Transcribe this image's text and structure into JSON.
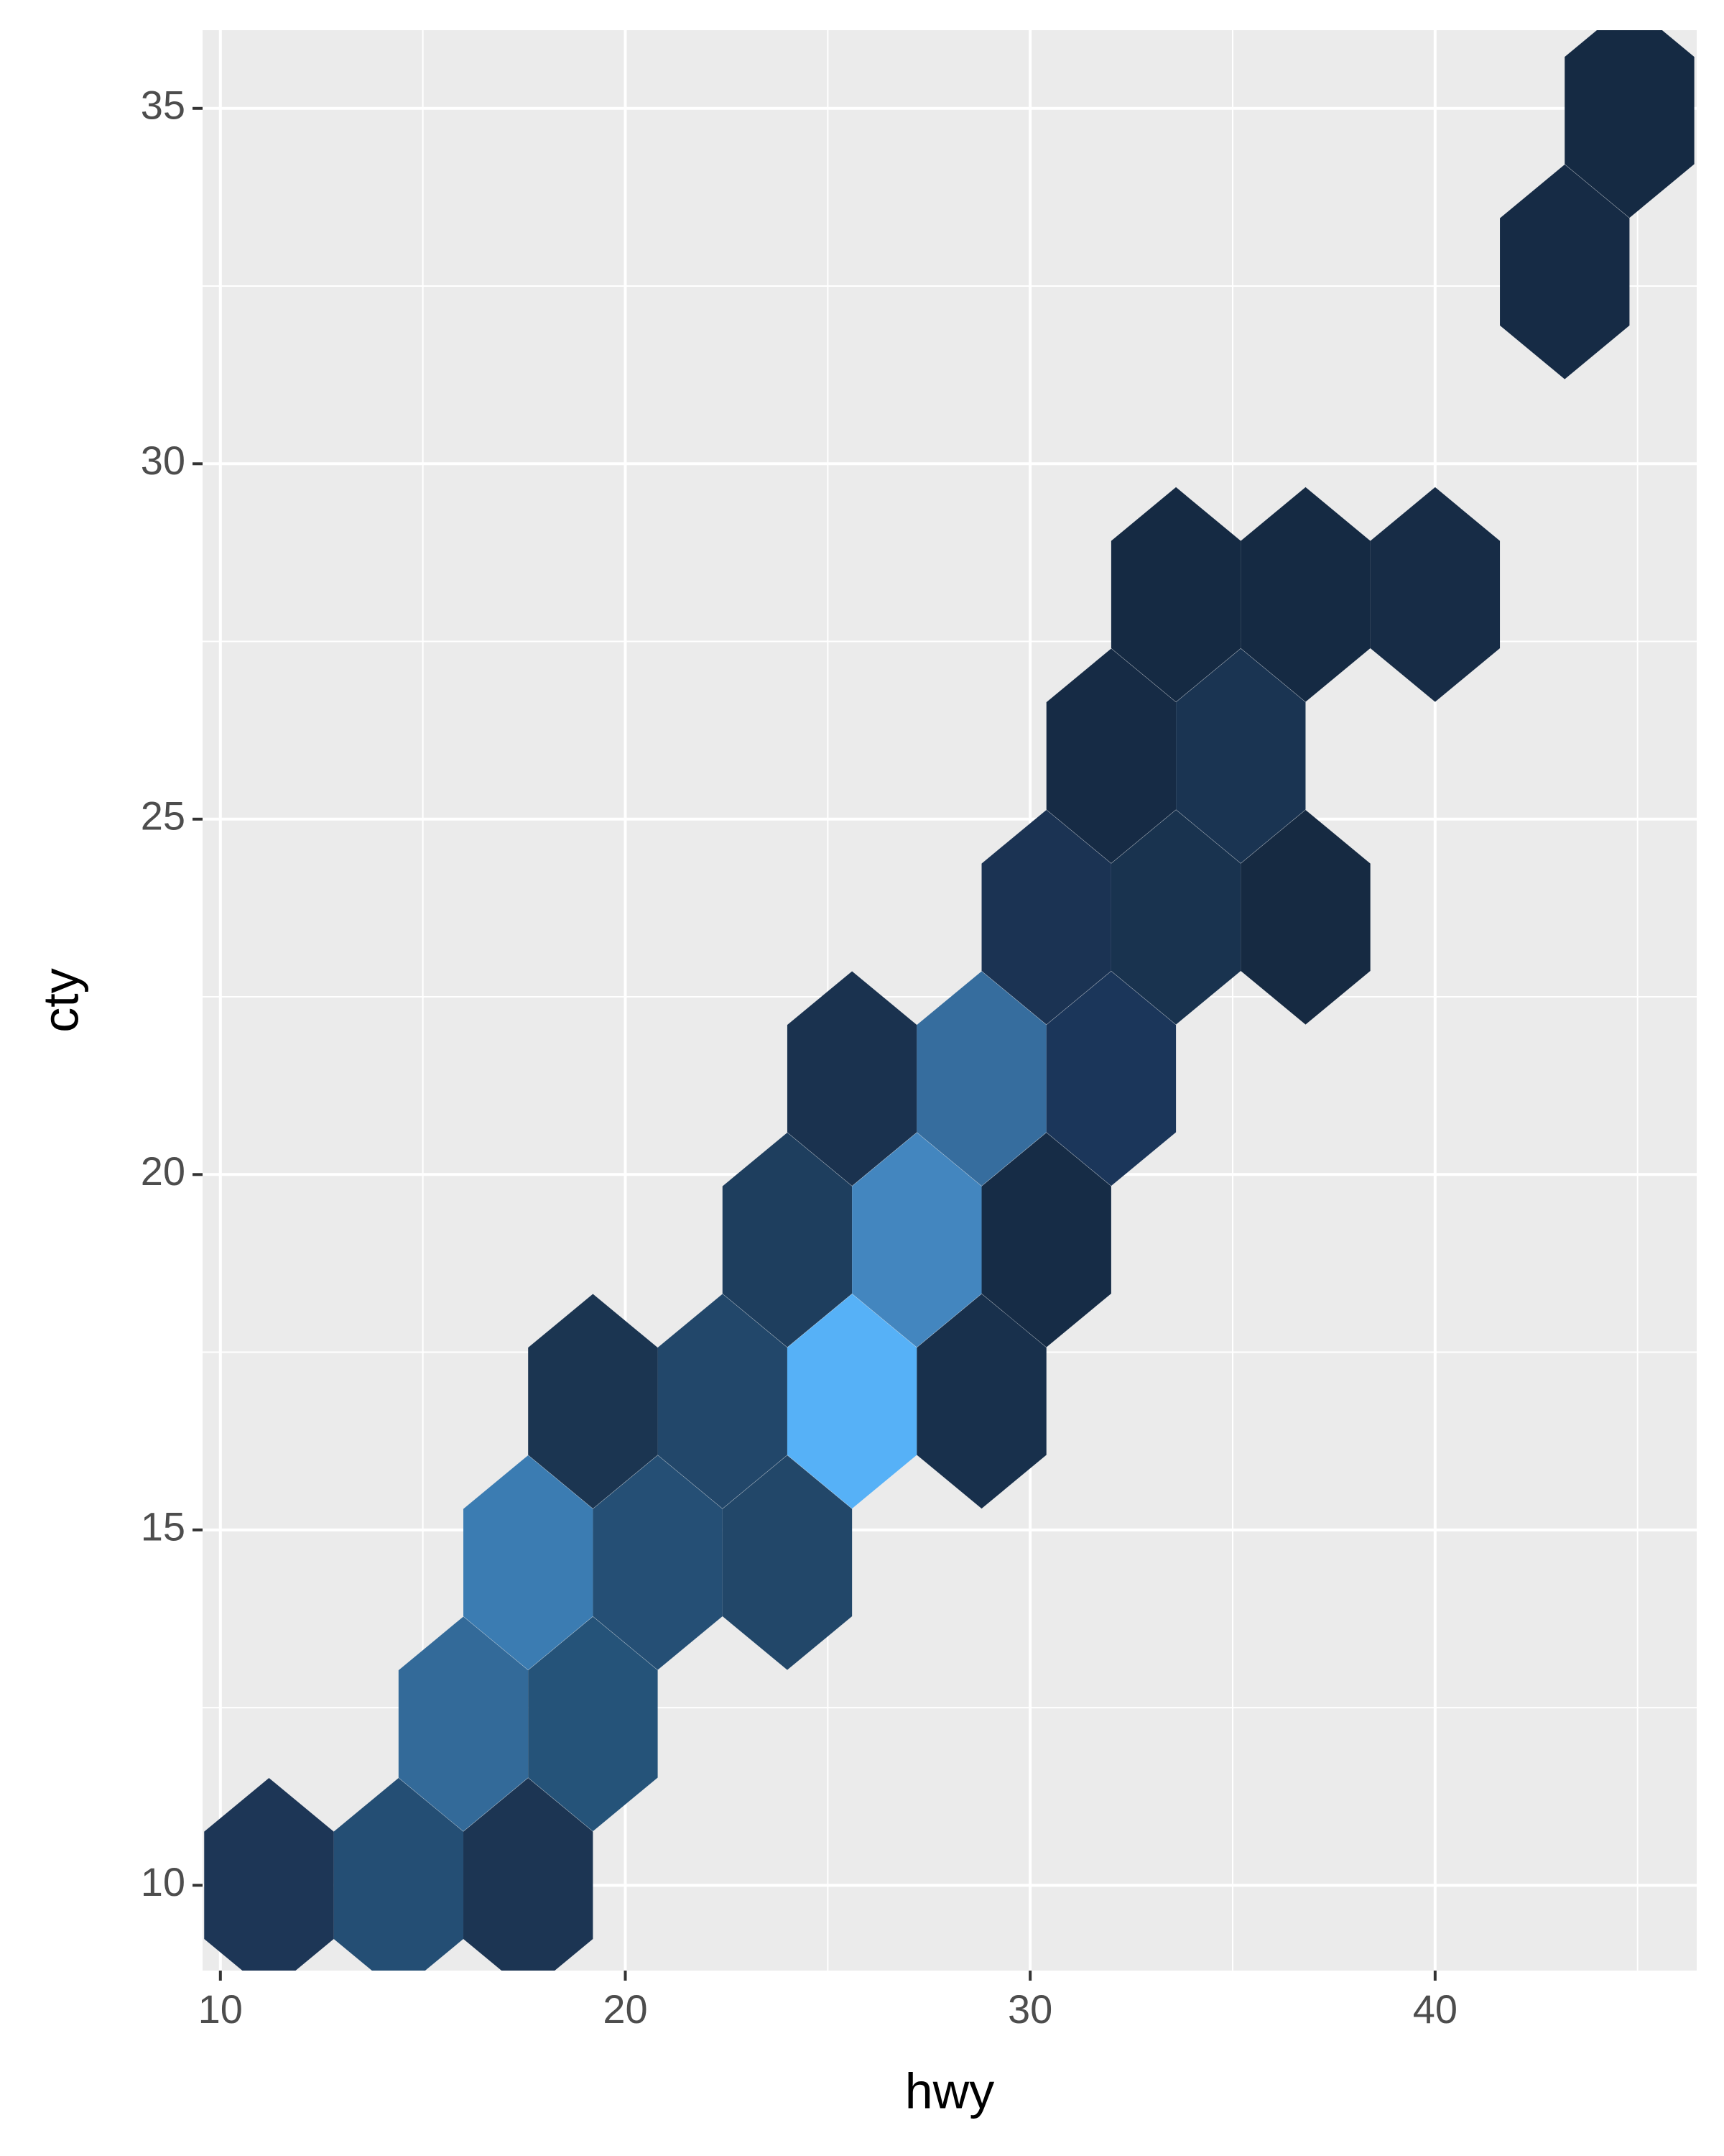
{
  "chart_data": {
    "type": "hexbin",
    "x_label": "hwy",
    "y_label": "cty",
    "x": [
      11.2,
      14.4,
      17.6,
      16.0,
      19.2,
      17.6,
      20.8,
      24.0,
      19.2,
      22.4,
      25.6,
      28.8,
      24.0,
      27.2,
      30.4,
      25.6,
      28.8,
      32.0,
      30.4,
      33.6,
      36.8,
      32.0,
      35.2,
      33.6,
      36.8,
      40.0,
      43.2,
      44.8
    ],
    "y": [
      10.0,
      10.0,
      10.0,
      12.27,
      12.27,
      14.54,
      14.54,
      14.54,
      16.81,
      16.81,
      16.81,
      16.81,
      19.08,
      19.08,
      19.08,
      21.35,
      21.35,
      21.35,
      23.62,
      23.62,
      23.62,
      25.89,
      25.89,
      28.16,
      28.16,
      28.16,
      32.7,
      34.97
    ],
    "colors": [
      "#1d3656",
      "#244e74",
      "#1c3553",
      "#336a99",
      "#255379",
      "#3b7cb2",
      "#254f75",
      "#224769",
      "#1b3551",
      "#22476a",
      "#56b1f7",
      "#18304c",
      "#1e3e5e",
      "#4386bf",
      "#162c46",
      "#1a324f",
      "#366d9e",
      "#1b365a",
      "#1b3353",
      "#19334f",
      "#162a42",
      "#162b45",
      "#1a3452",
      "#152a43",
      "#152a43",
      "#172c46",
      "#162b45",
      "#152a43"
    ],
    "xlim": [
      9.56,
      46.46
    ],
    "ylim": [
      8.8,
      36.1
    ],
    "xticks": [
      10,
      20,
      30,
      40
    ],
    "yticks": [
      10,
      15,
      20,
      25,
      30,
      35
    ],
    "grid": true
  }
}
